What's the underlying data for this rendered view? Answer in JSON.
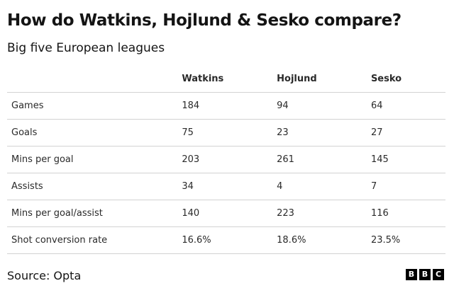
{
  "title": "How do Watkins, Hojlund & Sesko compare?",
  "subtitle": "Big five European leagues",
  "source": "Source: Opta",
  "logo": [
    "B",
    "B",
    "C"
  ],
  "chart_data": {
    "type": "table",
    "columns": [
      "",
      "Watkins",
      "Hojlund",
      "Sesko"
    ],
    "rows": [
      {
        "label": "Games",
        "values": [
          "184",
          "94",
          "64"
        ]
      },
      {
        "label": "Goals",
        "values": [
          "75",
          "23",
          "27"
        ]
      },
      {
        "label": "Mins per goal",
        "values": [
          "203",
          "261",
          "145"
        ]
      },
      {
        "label": "Assists",
        "values": [
          "34",
          "4",
          "7"
        ]
      },
      {
        "label": "Mins per goal/assist",
        "values": [
          "140",
          "223",
          "116"
        ]
      },
      {
        "label": "Shot conversion rate",
        "values": [
          "16.6%",
          "18.6%",
          "23.5%"
        ]
      }
    ]
  }
}
